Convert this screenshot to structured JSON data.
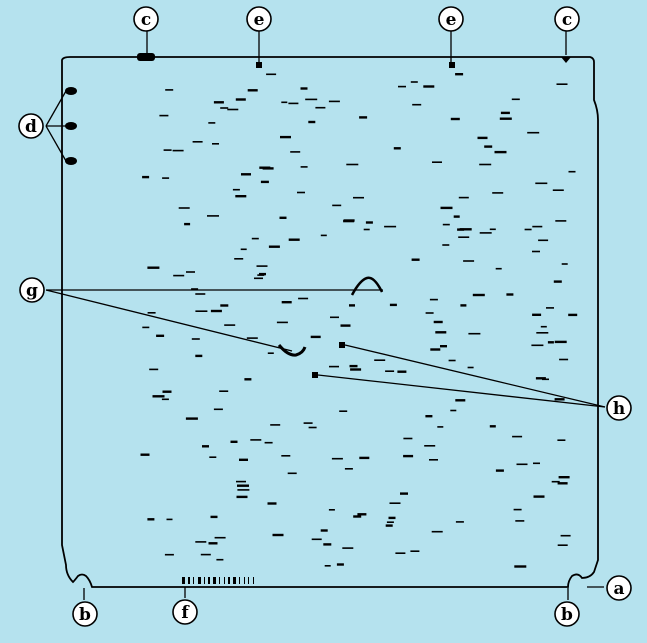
{
  "colors": {
    "background": "#b5e2ee",
    "outline": "#000000",
    "callout_fill": "#ffffff"
  },
  "callouts": {
    "a": "a",
    "b": "b",
    "c": "c",
    "d": "d",
    "e": "e",
    "f": "f",
    "g": "g",
    "h": "h"
  }
}
